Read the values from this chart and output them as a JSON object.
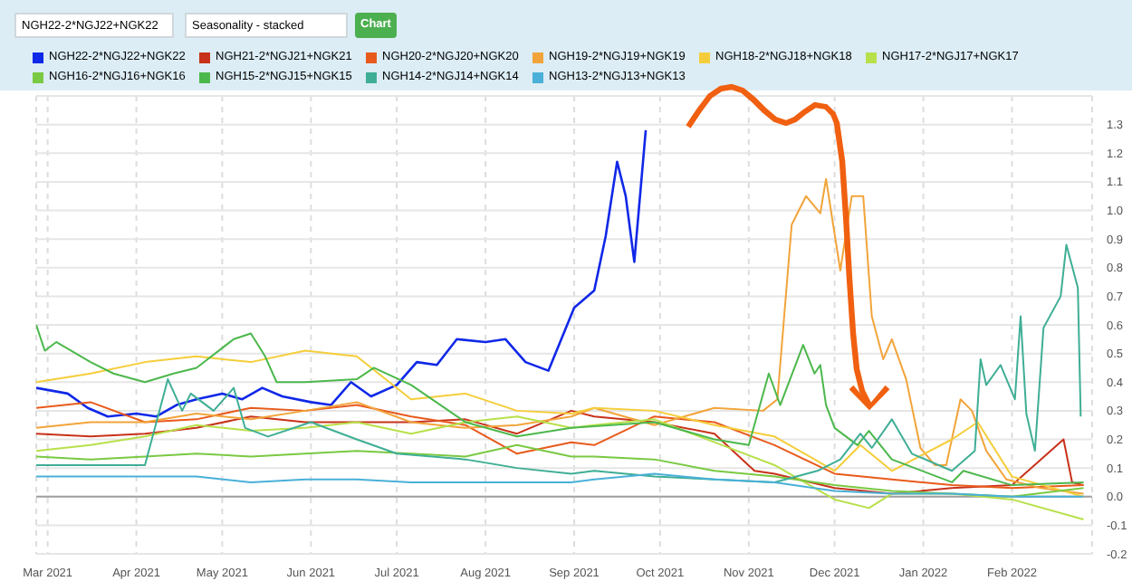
{
  "chart_data": {
    "type": "line",
    "title": "NGH22-2*NGJ22+NGK22",
    "subtitle": "Seasonality - stacked",
    "annotations": [
      "Chart"
    ],
    "legend": "top",
    "grid": true,
    "xlim": [
      "2021-02-25",
      "2022-03-01"
    ],
    "xticks": [
      {
        "value": "2021-03-01",
        "label": "Mar 2021"
      },
      {
        "value": "2021-04-01",
        "label": "Apr 2021"
      },
      {
        "value": "2021-05-01",
        "label": "May 2021"
      },
      {
        "value": "2021-06-01",
        "label": "Jun 2021"
      },
      {
        "value": "2021-07-01",
        "label": "Jul 2021"
      },
      {
        "value": "2021-08-01",
        "label": "Aug 2021"
      },
      {
        "value": "2021-09-01",
        "label": "Sep 2021"
      },
      {
        "value": "2021-10-01",
        "label": "Oct 2021"
      },
      {
        "value": "2021-11-01",
        "label": "Nov 2021"
      },
      {
        "value": "2021-12-01",
        "label": "Dec 2021"
      },
      {
        "value": "2022-01-01",
        "label": "Jan 2022"
      },
      {
        "value": "2022-02-01",
        "label": "Feb 2022"
      }
    ],
    "ylim": [
      -0.2,
      1.4
    ],
    "yticks": [
      -0.2,
      -0.1,
      {
        "value": 0,
        "label": "0.0"
      },
      0.1,
      0.2,
      0.3,
      0.4,
      0.5,
      0.6,
      0.7,
      0.8,
      0.9,
      {
        "value": 1,
        "label": "1.0"
      },
      1.1,
      1.2,
      1.3
    ],
    "ref_lines": [
      {
        "axis": "y",
        "value": 0,
        "color": "#a0a0a0"
      }
    ],
    "series": [
      {
        "name": "NGH22-2*NGJ22+NGK22",
        "color": "#1028e8",
        "x": [
          "2021-02-25",
          "2021-03-08",
          "2021-03-15",
          "2021-03-22",
          "2021-04-01",
          "2021-04-08",
          "2021-04-15",
          "2021-04-22",
          "2021-05-01",
          "2021-05-08",
          "2021-05-15",
          "2021-05-22",
          "2021-06-01",
          "2021-06-08",
          "2021-06-15",
          "2021-06-22",
          "2021-07-01",
          "2021-07-08",
          "2021-07-15",
          "2021-07-22",
          "2021-08-01",
          "2021-08-08",
          "2021-08-15",
          "2021-08-23",
          "2021-09-01",
          "2021-09-08",
          "2021-09-12",
          "2021-09-16",
          "2021-09-19",
          "2021-09-22",
          "2021-09-26"
        ],
        "values": [
          0.38,
          0.36,
          0.31,
          0.28,
          0.29,
          0.28,
          0.32,
          0.34,
          0.36,
          0.34,
          0.38,
          0.35,
          0.33,
          0.32,
          0.4,
          0.35,
          0.39,
          0.47,
          0.46,
          0.55,
          0.54,
          0.55,
          0.47,
          0.44,
          0.66,
          0.72,
          0.91,
          1.17,
          1.05,
          0.82,
          1.28
        ]
      },
      {
        "name": "NGH21-2*NGJ21+NGK21",
        "color": "#c8321a",
        "x": [
          "2021-02-25",
          "2021-03-16",
          "2021-04-04",
          "2021-04-22",
          "2021-05-11",
          "2021-05-30",
          "2021-06-17",
          "2021-07-06",
          "2021-07-25",
          "2021-08-12",
          "2021-08-31",
          "2021-09-08",
          "2021-09-29",
          "2021-10-20",
          "2021-11-03",
          "2021-11-10",
          "2021-12-01",
          "2021-12-21",
          "2022-01-11",
          "2022-02-01",
          "2022-02-19",
          "2022-02-22",
          "2022-02-26"
        ],
        "values": [
          0.22,
          0.21,
          0.22,
          0.24,
          0.28,
          0.26,
          0.26,
          0.26,
          0.27,
          0.22,
          0.3,
          0.28,
          0.26,
          0.22,
          0.09,
          0.08,
          0.03,
          0.01,
          0.03,
          0.04,
          0.2,
          0.05,
          0.04
        ]
      },
      {
        "name": "NGH20-2*NGJ20+NGK20",
        "color": "#e85a1c",
        "x": [
          "2021-02-25",
          "2021-03-16",
          "2021-04-04",
          "2021-04-22",
          "2021-05-11",
          "2021-05-30",
          "2021-06-17",
          "2021-07-06",
          "2021-07-25",
          "2021-08-12",
          "2021-08-31",
          "2021-09-08",
          "2021-09-29",
          "2021-10-20",
          "2021-11-10",
          "2021-12-01",
          "2021-12-21",
          "2022-01-11",
          "2022-02-01",
          "2022-02-26"
        ],
        "values": [
          0.31,
          0.33,
          0.26,
          0.27,
          0.31,
          0.3,
          0.32,
          0.28,
          0.25,
          0.15,
          0.19,
          0.18,
          0.28,
          0.26,
          0.18,
          0.08,
          0.06,
          0.04,
          0.03,
          0.04
        ]
      },
      {
        "name": "NGH19-2*NGJ19+NGK19",
        "color": "#f2a43a",
        "x": [
          "2021-02-25",
          "2021-03-16",
          "2021-04-04",
          "2021-04-22",
          "2021-05-11",
          "2021-05-30",
          "2021-06-17",
          "2021-07-06",
          "2021-07-25",
          "2021-08-12",
          "2021-08-31",
          "2021-09-08",
          "2021-09-29",
          "2021-10-20",
          "2021-11-06",
          "2021-11-11",
          "2021-11-16",
          "2021-11-21",
          "2021-11-26",
          "2021-11-28",
          "2021-12-03",
          "2021-12-07",
          "2021-12-11",
          "2021-12-14",
          "2021-12-18",
          "2021-12-21",
          "2021-12-26",
          "2021-12-31",
          "2022-01-05",
          "2022-01-09",
          "2022-01-14",
          "2022-01-18",
          "2022-01-23",
          "2022-01-30",
          "2022-02-11",
          "2022-02-26"
        ],
        "values": [
          0.24,
          0.26,
          0.26,
          0.29,
          0.27,
          0.3,
          0.33,
          0.26,
          0.24,
          0.25,
          0.28,
          0.31,
          0.25,
          0.31,
          0.3,
          0.34,
          0.95,
          1.05,
          0.99,
          1.11,
          0.79,
          1.05,
          1.05,
          0.63,
          0.48,
          0.55,
          0.41,
          0.17,
          0.11,
          0.11,
          0.34,
          0.3,
          0.16,
          0.06,
          0.03,
          0.01
        ]
      },
      {
        "name": "NGH18-2*NGJ18+NGK18",
        "color": "#f5cd3a",
        "x": [
          "2021-02-25",
          "2021-03-16",
          "2021-04-04",
          "2021-04-22",
          "2021-05-11",
          "2021-05-30",
          "2021-06-17",
          "2021-07-06",
          "2021-07-25",
          "2021-08-12",
          "2021-08-31",
          "2021-09-08",
          "2021-09-29",
          "2021-10-20",
          "2021-11-10",
          "2021-12-01",
          "2021-12-10",
          "2021-12-21",
          "2022-01-11",
          "2022-01-20",
          "2022-02-01",
          "2022-02-26"
        ],
        "values": [
          0.4,
          0.43,
          0.47,
          0.49,
          0.47,
          0.51,
          0.49,
          0.34,
          0.36,
          0.3,
          0.29,
          0.31,
          0.3,
          0.25,
          0.21,
          0.09,
          0.18,
          0.09,
          0.2,
          0.26,
          0.07,
          0.0
        ]
      },
      {
        "name": "NGH17-2*NGJ17+NGK17",
        "color": "#b8e04a",
        "x": [
          "2021-02-25",
          "2021-03-16",
          "2021-04-04",
          "2021-04-22",
          "2021-05-11",
          "2021-05-30",
          "2021-06-17",
          "2021-07-06",
          "2021-07-25",
          "2021-08-12",
          "2021-08-31",
          "2021-09-08",
          "2021-09-29",
          "2021-10-20",
          "2021-11-10",
          "2021-12-01",
          "2021-12-13",
          "2021-12-21",
          "2022-01-11",
          "2022-02-01",
          "2022-02-26"
        ],
        "values": [
          0.16,
          0.18,
          0.21,
          0.25,
          0.23,
          0.24,
          0.26,
          0.22,
          0.26,
          0.28,
          0.24,
          0.25,
          0.27,
          0.19,
          0.11,
          -0.01,
          -0.04,
          0.01,
          0.01,
          -0.01,
          -0.08
        ]
      },
      {
        "name": "NGH16-2*NGJ16+NGK16",
        "color": "#7ac943",
        "x": [
          "2021-02-25",
          "2021-03-16",
          "2021-04-04",
          "2021-04-22",
          "2021-05-11",
          "2021-05-30",
          "2021-06-17",
          "2021-07-06",
          "2021-07-25",
          "2021-08-12",
          "2021-08-31",
          "2021-09-08",
          "2021-09-29",
          "2021-10-20",
          "2021-11-10",
          "2021-12-01",
          "2021-12-21",
          "2022-01-11",
          "2022-02-01",
          "2022-02-26"
        ],
        "values": [
          0.14,
          0.13,
          0.14,
          0.15,
          0.14,
          0.15,
          0.16,
          0.15,
          0.14,
          0.18,
          0.14,
          0.14,
          0.13,
          0.09,
          0.07,
          0.04,
          0.02,
          0.01,
          0.0,
          0.03
        ]
      },
      {
        "name": "NGH15-2*NGJ15+NGK15",
        "color": "#4cb84c",
        "x": [
          "2021-02-25",
          "2021-02-28",
          "2021-03-04",
          "2021-03-16",
          "2021-03-24",
          "2021-04-04",
          "2021-04-14",
          "2021-04-22",
          "2021-05-05",
          "2021-05-11",
          "2021-05-16",
          "2021-05-20",
          "2021-05-30",
          "2021-06-17",
          "2021-06-23",
          "2021-07-06",
          "2021-07-25",
          "2021-08-12",
          "2021-08-31",
          "2021-09-29",
          "2021-10-20",
          "2021-11-01",
          "2021-11-08",
          "2021-11-12",
          "2021-11-20",
          "2021-11-24",
          "2021-11-26",
          "2021-11-28",
          "2021-12-01",
          "2021-12-09",
          "2021-12-13",
          "2021-12-21",
          "2022-01-11",
          "2022-01-15",
          "2022-02-01",
          "2022-02-26"
        ],
        "values": [
          0.6,
          0.51,
          0.54,
          0.47,
          0.43,
          0.4,
          0.43,
          0.45,
          0.55,
          0.57,
          0.49,
          0.4,
          0.4,
          0.41,
          0.45,
          0.39,
          0.26,
          0.21,
          0.24,
          0.26,
          0.2,
          0.18,
          0.43,
          0.32,
          0.53,
          0.43,
          0.46,
          0.32,
          0.24,
          0.18,
          0.23,
          0.13,
          0.05,
          0.09,
          0.04,
          0.05
        ]
      },
      {
        "name": "NGH14-2*NGJ14+NGK14",
        "color": "#3fae95",
        "x": [
          "2021-02-25",
          "2021-03-16",
          "2021-04-04",
          "2021-04-12",
          "2021-04-17",
          "2021-04-20",
          "2021-04-28",
          "2021-05-05",
          "2021-05-09",
          "2021-05-17",
          "2021-06-01",
          "2021-06-17",
          "2021-07-01",
          "2021-07-25",
          "2021-08-12",
          "2021-08-31",
          "2021-09-08",
          "2021-09-29",
          "2021-10-20",
          "2021-11-10",
          "2021-11-25",
          "2021-12-03",
          "2021-12-10",
          "2021-12-14",
          "2021-12-21",
          "2021-12-28",
          "2022-01-11",
          "2022-01-19",
          "2022-01-21",
          "2022-01-23",
          "2022-01-28",
          "2022-02-02",
          "2022-02-04",
          "2022-02-06",
          "2022-02-09",
          "2022-02-12",
          "2022-02-18",
          "2022-02-20",
          "2022-02-24",
          "2022-02-25"
        ],
        "values": [
          0.11,
          0.11,
          0.11,
          0.41,
          0.3,
          0.36,
          0.3,
          0.38,
          0.24,
          0.21,
          0.26,
          0.2,
          0.15,
          0.13,
          0.1,
          0.08,
          0.09,
          0.07,
          0.06,
          0.05,
          0.09,
          0.13,
          0.22,
          0.17,
          0.27,
          0.15,
          0.09,
          0.16,
          0.48,
          0.39,
          0.46,
          0.34,
          0.63,
          0.29,
          0.16,
          0.59,
          0.7,
          0.88,
          0.73,
          0.28
        ]
      },
      {
        "name": "NGH13-2*NGJ13+NGK13",
        "color": "#4ab0d8",
        "x": [
          "2021-02-25",
          "2021-03-16",
          "2021-04-04",
          "2021-04-22",
          "2021-05-11",
          "2021-05-30",
          "2021-06-17",
          "2021-07-06",
          "2021-07-25",
          "2021-08-12",
          "2021-08-31",
          "2021-09-08",
          "2021-09-29",
          "2021-10-20",
          "2021-11-10",
          "2021-12-01",
          "2021-12-21",
          "2022-01-11",
          "2022-02-01",
          "2022-02-26"
        ],
        "values": [
          0.07,
          0.07,
          0.07,
          0.07,
          0.05,
          0.06,
          0.06,
          0.05,
          0.05,
          0.05,
          0.05,
          0.06,
          0.08,
          0.06,
          0.05,
          0.02,
          0.01,
          0.01,
          0.0,
          0.0
        ]
      }
    ]
  }
}
